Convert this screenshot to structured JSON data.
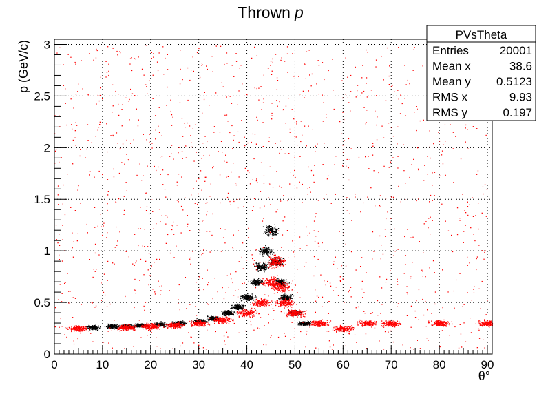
{
  "chart_data": {
    "type": "scatter",
    "title": "Thrown",
    "title_italic": "p",
    "xlabel": "θ°",
    "ylabel": "p (GeV/c)",
    "xlim": [
      0,
      91
    ],
    "ylim": [
      0,
      3.05
    ],
    "x_ticks": [
      "0",
      "10",
      "20",
      "30",
      "40",
      "50",
      "60",
      "70",
      "80",
      "90"
    ],
    "y_ticks": [
      "0",
      "0.5",
      "1",
      "1.5",
      "2",
      "2.5",
      "3"
    ],
    "grid": true,
    "grid_style": "dotted",
    "series": [
      {
        "color": "#000000",
        "x": [
          8,
          12,
          15,
          18,
          22,
          26,
          30,
          33,
          36,
          38,
          40,
          42,
          43,
          44,
          45,
          46,
          47,
          48,
          50,
          52
        ],
        "y": [
          0.26,
          0.27,
          0.27,
          0.28,
          0.29,
          0.3,
          0.32,
          0.35,
          0.4,
          0.46,
          0.55,
          0.7,
          0.85,
          1.0,
          1.2,
          0.9,
          0.7,
          0.55,
          0.4,
          0.3
        ]
      },
      {
        "color": "#ff0000",
        "x": [
          5,
          15,
          20,
          25,
          30,
          35,
          40,
          43,
          45,
          46,
          47,
          48,
          50,
          55,
          60,
          65,
          70,
          80,
          90
        ],
        "y": [
          0.25,
          0.26,
          0.27,
          0.28,
          0.3,
          0.33,
          0.4,
          0.5,
          0.7,
          0.9,
          0.65,
          0.5,
          0.4,
          0.3,
          0.25,
          0.3,
          0.3,
          0.3,
          0.3
        ]
      }
    ],
    "stats_box": {
      "title": "PVsTheta",
      "rows": [
        {
          "label": "Entries",
          "value": "20001"
        },
        {
          "label": "Mean x",
          "value": "38.6"
        },
        {
          "label": "Mean y",
          "value": "0.5123"
        },
        {
          "label": "RMS x",
          "value": "9.93"
        },
        {
          "label": "RMS y",
          "value": "0.197"
        }
      ]
    },
    "colors": {
      "signal": "#ff0000",
      "background": "#000000",
      "frame": "#000000"
    }
  }
}
